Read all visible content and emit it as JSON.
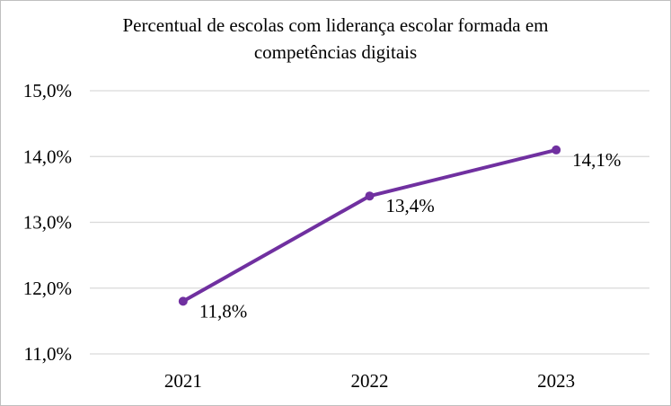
{
  "chart_data": {
    "type": "line",
    "title_lines": [
      "Percentual de escolas com liderança escolar formada em",
      "competências digitais"
    ],
    "categories": [
      "2021",
      "2022",
      "2023"
    ],
    "series": [
      {
        "values": [
          11.8,
          13.4,
          14.1
        ],
        "labels": [
          "11,8%",
          "13,4%",
          "14,1%"
        ]
      }
    ],
    "ylim": [
      11,
      15
    ],
    "yticks": [
      15,
      14,
      13,
      12,
      11
    ],
    "ytick_labels": [
      "15,0%",
      "14,0%",
      "13,0%",
      "12,0%",
      "11,0%"
    ],
    "grid": true,
    "legend": "none",
    "line_color": "#7030a0",
    "grid_color": "#d9d9d9",
    "axis_color": "#d9d9d9"
  }
}
